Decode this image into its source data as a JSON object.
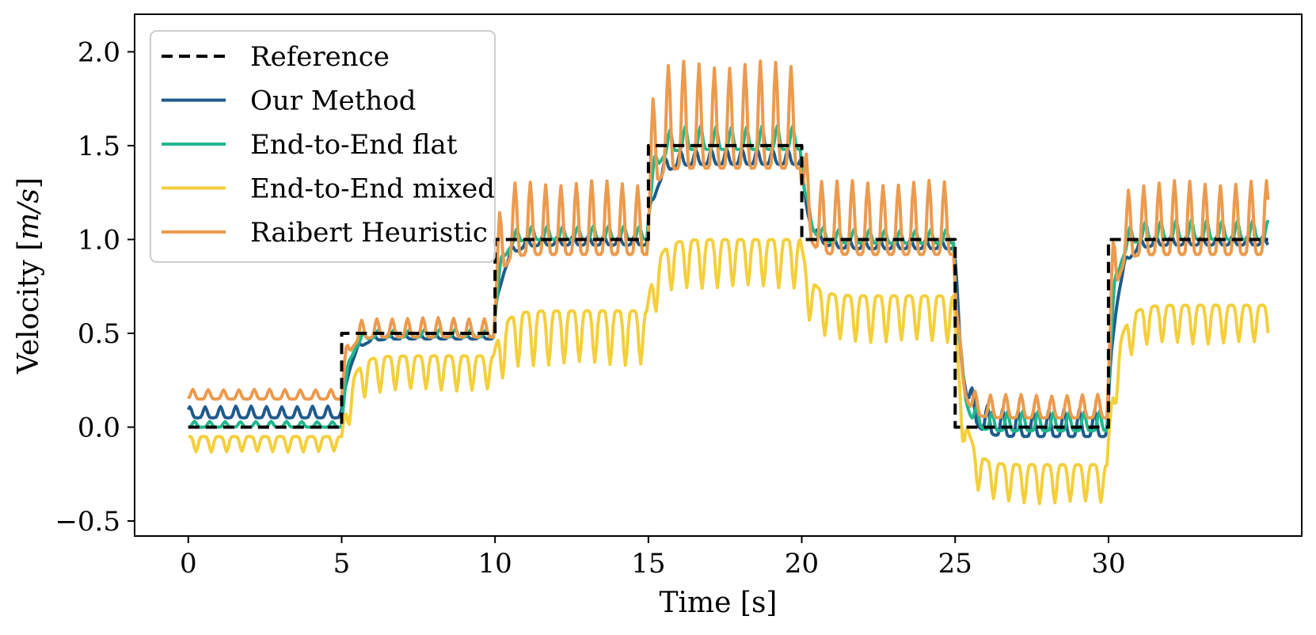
{
  "chart_data": {
    "type": "line",
    "title": "",
    "xlabel": "Time [s]",
    "ylabel": "Velocity [m/s]",
    "ylabel_parts": {
      "prefix": "Velocity [",
      "unit": "m/s",
      "suffix": "]"
    },
    "xlim": [
      -1.75,
      36.3
    ],
    "ylim": [
      -0.58,
      2.2
    ],
    "xticks": [
      0,
      5,
      10,
      15,
      20,
      25,
      30
    ],
    "xtick_labels": [
      "0",
      "5",
      "10",
      "15",
      "20",
      "25",
      "30"
    ],
    "yticks": [
      -0.5,
      0.0,
      0.5,
      1.0,
      1.5,
      2.0
    ],
    "ytick_labels": [
      "−0.5",
      "0.0",
      "0.5",
      "1.0",
      "1.5",
      "2.0"
    ],
    "grid": false,
    "legend_position": "top-left",
    "series": [
      {
        "name": "Reference",
        "color": "#000000",
        "style": "dashed",
        "x": [
          0,
          5,
          5,
          10,
          10,
          15,
          15,
          20,
          20,
          25,
          25,
          30,
          30,
          35.2
        ],
        "values": [
          0,
          0,
          0.5,
          0.5,
          1.0,
          1.0,
          1.5,
          1.5,
          1.0,
          1.0,
          0,
          0,
          1.0,
          1.0
        ]
      },
      {
        "name": "Our Method",
        "color": "#1f5b8c",
        "style": "solid",
        "gen": {
          "segments": [
            [
              0,
              5,
              0.05,
              0.06
            ],
            [
              5,
              10,
              0.47,
              0.03
            ],
            [
              10,
              15,
              0.97,
              0.05
            ],
            [
              15,
              20,
              1.4,
              0.08
            ],
            [
              20,
              25,
              0.95,
              0.05
            ],
            [
              25,
              30,
              -0.05,
              0.14
            ],
            [
              30,
              35.2,
              0.97,
              0.05
            ]
          ],
          "amp": 1.0,
          "period": 0.5,
          "tau": 0.28,
          "phase": 0.2
        }
      },
      {
        "name": "End-to-End flat",
        "color": "#20b78e",
        "style": "solid",
        "gen": {
          "segments": [
            [
              0,
              5,
              0.0,
              0.03
            ],
            [
              5,
              10,
              0.48,
              0.04
            ],
            [
              10,
              15,
              1.0,
              0.07
            ],
            [
              15,
              20,
              1.48,
              0.12
            ],
            [
              20,
              25,
              0.98,
              0.07
            ],
            [
              25,
              30,
              -0.02,
              0.1
            ],
            [
              30,
              35.2,
              1.0,
              0.1
            ]
          ],
          "amp": 1.0,
          "period": 0.5,
          "tau": 0.22,
          "phase": 0.05
        }
      },
      {
        "name": "End-to-End mixed",
        "color": "#f4cf3b",
        "style": "solid",
        "gen": {
          "segments": [
            [
              0,
              5,
              -0.05,
              -0.08
            ],
            [
              5,
              10,
              0.38,
              -0.18
            ],
            [
              10,
              15,
              0.62,
              -0.28
            ],
            [
              15,
              20,
              1.0,
              -0.25
            ],
            [
              20,
              25,
              0.7,
              -0.24
            ],
            [
              25,
              30,
              -0.2,
              -0.2
            ],
            [
              30,
              35.2,
              0.65,
              -0.2
            ]
          ],
          "amp": 1.0,
          "period": 0.5,
          "tau": 0.3,
          "phase": 0.0
        }
      },
      {
        "name": "Raibert Heuristic",
        "color": "#ec9a4d",
        "style": "solid",
        "gen": {
          "segments": [
            [
              0,
              5,
              0.15,
              0.05
            ],
            [
              5,
              10,
              0.48,
              0.1
            ],
            [
              10,
              15,
              0.92,
              0.38
            ],
            [
              15,
              20,
              1.38,
              0.55
            ],
            [
              20,
              25,
              0.92,
              0.38
            ],
            [
              25,
              30,
              0.05,
              0.12
            ],
            [
              30,
              35.2,
              0.92,
              0.38
            ]
          ],
          "amp": 1.0,
          "period": 0.5,
          "tau": 0.2,
          "phase": 0.1
        }
      }
    ]
  }
}
